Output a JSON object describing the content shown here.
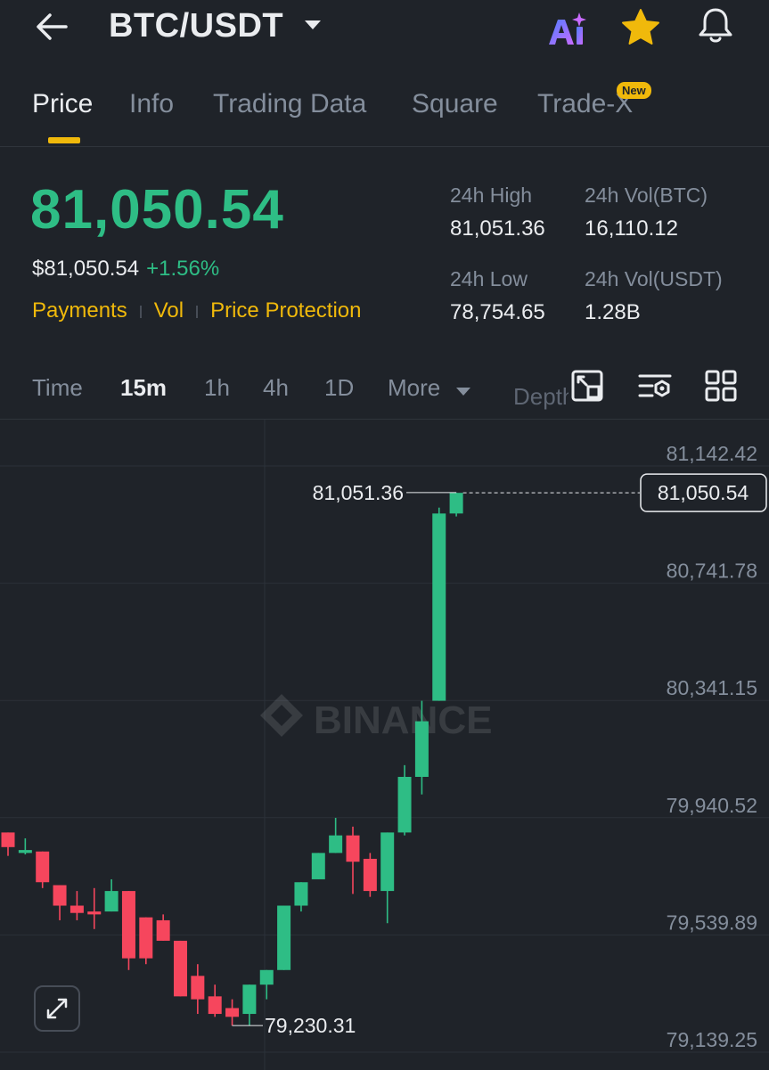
{
  "header": {
    "pair": "BTC/USDT",
    "icons": [
      "back-arrow-icon",
      "ai-icon",
      "star-icon",
      "bell-icon"
    ],
    "star_color": "#f0b90b"
  },
  "tabs": [
    {
      "label": "Price",
      "active": true
    },
    {
      "label": "Info"
    },
    {
      "label": "Trading Data"
    },
    {
      "label": "Square"
    },
    {
      "label": "Trade-X",
      "badge": "New"
    }
  ],
  "ticker": {
    "last_price": "81,050.54",
    "usd_price": "$81,050.54",
    "change": "+1.56%",
    "links": [
      "Payments",
      "Vol",
      "Price Protection"
    ],
    "high_label": "24h High",
    "high_value": "81,051.36",
    "vol_btc_label": "24h Vol(BTC)",
    "vol_btc_value": "16,110.12",
    "low_label": "24h Low",
    "low_value": "78,754.65",
    "vol_usdt_label": "24h Vol(USDT)",
    "vol_usdt_value": "1.28B",
    "up_color": "#2ebd85",
    "down_color": "#f6465d",
    "accent": "#f0b90b"
  },
  "intervals": {
    "items": [
      "Time",
      "15m",
      "1h",
      "4h",
      "1D"
    ],
    "active": "15m",
    "more": "More",
    "depth": "Depth",
    "tools": [
      "chart-settings-icon",
      "indicator-icon",
      "grid-layout-icon"
    ]
  },
  "chart_data": {
    "type": "candlestick",
    "interval": "15m",
    "watermark": "BINANCE",
    "y_ticks": [
      81142.42,
      80741.78,
      80341.15,
      79940.52,
      79539.89,
      79139.25
    ],
    "y_tick_labels": [
      "81,142.42",
      "80,741.78",
      "80,341.15",
      "79,940.52",
      "79,539.89",
      "79,139.25"
    ],
    "ylim": [
      79139.25,
      81142.42
    ],
    "grid": true,
    "high_marker": {
      "value": 81051.36,
      "label": "81,051.36"
    },
    "low_marker": {
      "value": 79230.31,
      "label": "79,230.31"
    },
    "last_price": {
      "value": 81050.54,
      "label": "81,050.54"
    },
    "candles": [
      {
        "o": 79890,
        "h": 79890,
        "c": 79840,
        "l": 79810
      },
      {
        "o": 79820,
        "h": 79870,
        "c": 79830,
        "l": 79815
      },
      {
        "o": 79825,
        "h": 79825,
        "c": 79720,
        "l": 79700
      },
      {
        "o": 79710,
        "h": 79710,
        "c": 79640,
        "l": 79590
      },
      {
        "o": 79640,
        "h": 79690,
        "c": 79615,
        "l": 79590
      },
      {
        "o": 79620,
        "h": 79700,
        "c": 79610,
        "l": 79560
      },
      {
        "o": 79620,
        "h": 79730,
        "c": 79690,
        "l": 79620
      },
      {
        "o": 79690,
        "h": 79690,
        "c": 79460,
        "l": 79420
      },
      {
        "o": 79600,
        "h": 79600,
        "c": 79460,
        "l": 79440
      },
      {
        "o": 79590,
        "h": 79610,
        "c": 79520,
        "l": 79520
      },
      {
        "o": 79520,
        "h": 79520,
        "c": 79330,
        "l": 79330
      },
      {
        "o": 79400,
        "h": 79440,
        "c": 79320,
        "l": 79270
      },
      {
        "o": 79330,
        "h": 79370,
        "c": 79270,
        "l": 79260
      },
      {
        "o": 79290,
        "h": 79320,
        "c": 79260,
        "l": 79230
      },
      {
        "o": 79270,
        "h": 79370,
        "c": 79370,
        "l": 79230
      },
      {
        "o": 79370,
        "h": 79420,
        "c": 79420,
        "l": 79320
      },
      {
        "o": 79420,
        "h": 79640,
        "c": 79640,
        "l": 79420
      },
      {
        "o": 79640,
        "h": 79720,
        "c": 79720,
        "l": 79620
      },
      {
        "o": 79730,
        "h": 79820,
        "c": 79820,
        "l": 79730
      },
      {
        "o": 79820,
        "h": 79940,
        "c": 79880,
        "l": 79820
      },
      {
        "o": 79880,
        "h": 79910,
        "c": 79790,
        "l": 79680
      },
      {
        "o": 79800,
        "h": 79820,
        "c": 79690,
        "l": 79670
      },
      {
        "o": 79690,
        "h": 79890,
        "c": 79890,
        "l": 79580
      },
      {
        "o": 79890,
        "h": 80120,
        "c": 80080,
        "l": 79880
      },
      {
        "o": 80080,
        "h": 80340,
        "c": 80270,
        "l": 80020
      },
      {
        "o": 80340,
        "h": 81000,
        "c": 80980,
        "l": 80340
      },
      {
        "o": 80980,
        "h": 81051.36,
        "c": 81050.54,
        "l": 80970
      }
    ]
  }
}
